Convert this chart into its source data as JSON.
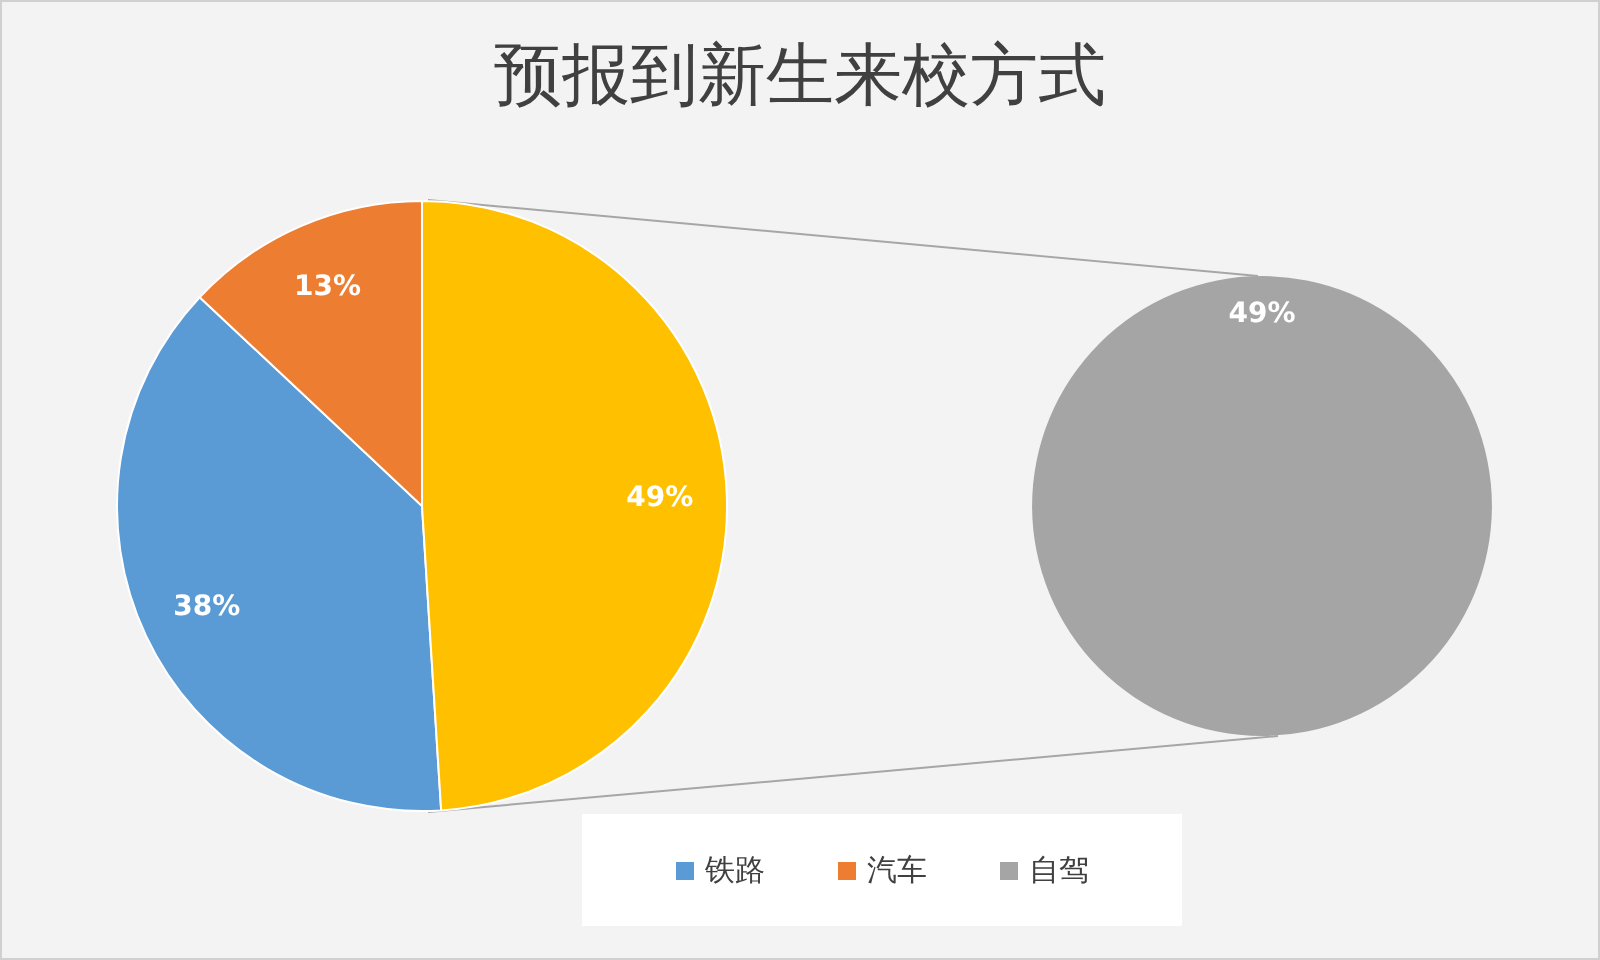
{
  "chart_data": [
    {
      "type": "pie",
      "title": "预报到新生来校方式",
      "categories": [
        "铁路",
        "汽车",
        null
      ],
      "values": [
        38,
        13,
        49
      ],
      "colors": [
        "#5b9bd5",
        "#ed7d31",
        "#ffc000"
      ],
      "value_labels": [
        "38%",
        "13%",
        "49%"
      ],
      "legend": "bottom"
    },
    {
      "type": "pie",
      "categories": [
        "自驾"
      ],
      "values": [
        49
      ],
      "colors": [
        "#a5a5a5"
      ],
      "value_labels": [
        "49%"
      ],
      "legend": "bottom"
    }
  ]
}
